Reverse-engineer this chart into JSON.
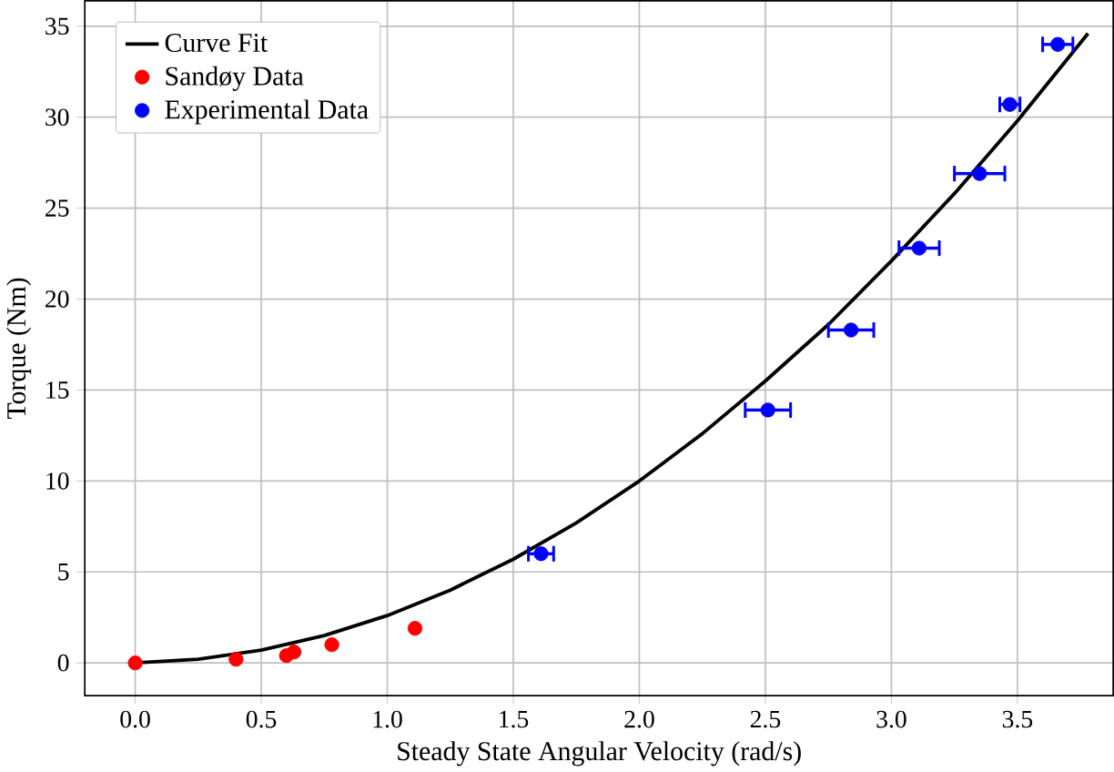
{
  "chart_data": {
    "type": "scatter",
    "xlabel": "Steady State Angular Velocity (rad/s)",
    "ylabel": "Torque (Nm)",
    "xlim": [
      -0.2,
      3.88
    ],
    "ylim": [
      -1.8,
      36.4
    ],
    "xticks": [
      {
        "value": 0,
        "label": "0.0"
      },
      0.5,
      {
        "value": 1,
        "label": "1.0"
      },
      1.5,
      {
        "value": 2,
        "label": "2.0"
      },
      2.5,
      {
        "value": 3,
        "label": "3.0"
      },
      3.5
    ],
    "yticks": [
      0,
      5,
      10,
      15,
      20,
      25,
      30,
      35
    ],
    "grid": true,
    "legend": "top left",
    "series": [
      {
        "name": "Curve Fit",
        "type": "line",
        "color": "#000000",
        "x": [
          0,
          0.25,
          0.5,
          0.75,
          1.0,
          1.25,
          1.5,
          1.75,
          2.0,
          2.25,
          2.5,
          2.75,
          3.0,
          3.25,
          3.5,
          3.78
        ],
        "values": [
          0,
          0.2,
          0.7,
          1.5,
          2.6,
          4.0,
          5.7,
          7.7,
          10.0,
          12.6,
          15.5,
          18.6,
          22.1,
          25.8,
          29.8,
          34.6
        ]
      },
      {
        "name": "Sandøy Data",
        "color": "#ff0000",
        "x": [
          0,
          0.4,
          0.6,
          0.63,
          0.78,
          1.11
        ],
        "values": [
          0,
          0.2,
          0.4,
          0.6,
          1.0,
          1.9
        ]
      },
      {
        "name": "Experimental Data",
        "color": "#0000ff",
        "x": [
          1.61,
          2.51,
          2.84,
          3.11,
          3.35,
          3.47,
          3.66
        ],
        "values": [
          6.0,
          13.9,
          18.3,
          22.8,
          26.9,
          30.7,
          34.0
        ],
        "xerrors": [
          0.05,
          0.09,
          0.09,
          0.08,
          0.1,
          0.04,
          0.06
        ]
      }
    ]
  }
}
